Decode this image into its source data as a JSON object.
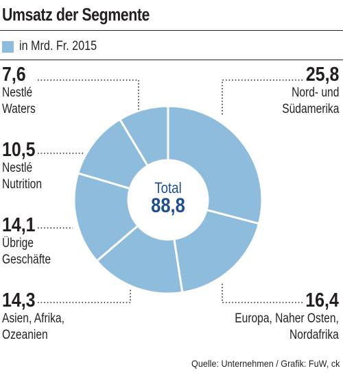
{
  "chart_data": {
    "type": "pie",
    "title": "Umsatz der Segmente",
    "unit_legend": "in Mrd. Fr. 2015",
    "total_label": "Total",
    "total_value": "88,8",
    "segments": [
      {
        "value": 25.8,
        "value_label": "25,8",
        "lines": [
          "Nord- und",
          "Südamerika"
        ]
      },
      {
        "value": 16.4,
        "value_label": "16,4",
        "lines": [
          "Europa, Naher Osten,",
          "Nordafrika"
        ]
      },
      {
        "value": 14.3,
        "value_label": "14,3",
        "lines": [
          "Asien, Afrika,",
          "Ozeanien"
        ]
      },
      {
        "value": 14.1,
        "value_label": "14,1",
        "lines": [
          "Übrige",
          "Geschäfte"
        ]
      },
      {
        "value": 10.5,
        "value_label": "10,5",
        "lines": [
          "Nestlé",
          "Nutrition"
        ]
      },
      {
        "value": 7.6,
        "value_label": "7,6",
        "lines": [
          "Nestlé",
          "Waters"
        ]
      }
    ],
    "colors": {
      "fill": "#8dbcdc",
      "stroke": "#ffffff",
      "total_text": "#1d4e91",
      "leader": "#231f20"
    },
    "source": "Quelle: Unternehmen / Grafik: FuW, ck"
  }
}
